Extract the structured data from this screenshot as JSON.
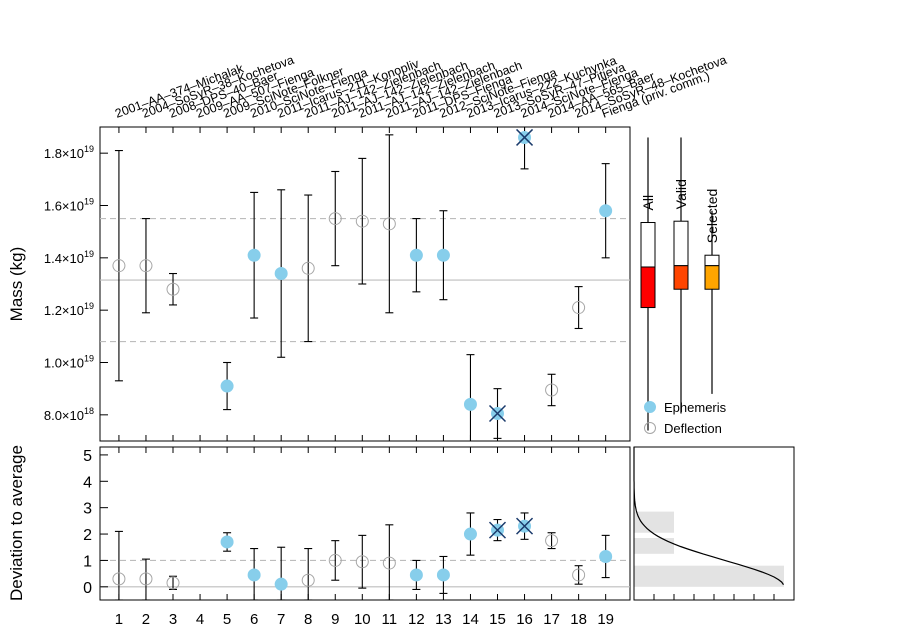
{
  "chart_data": [
    {
      "type": "scatter",
      "ylabel": "Mass (kg)",
      "ylim": [
        7e+18,
        1.9e+19
      ],
      "y_ticks": [
        {
          "v": 8e+18,
          "mant": "8.0",
          "exp": "18"
        },
        {
          "v": 1e+19,
          "mant": "1.0",
          "exp": "19"
        },
        {
          "v": 1.2e+19,
          "mant": "1.2",
          "exp": "19"
        },
        {
          "v": 1.4e+19,
          "mant": "1.4",
          "exp": "19"
        },
        {
          "v": 1.6e+19,
          "mant": "1.6",
          "exp": "19"
        },
        {
          "v": 1.8e+19,
          "mant": "1.8",
          "exp": "19"
        }
      ],
      "times_sign": "×",
      "mean": 1.315e+19,
      "sigma_lines": [
        1.08e+19,
        1.55e+19
      ],
      "top_labels": [
        "2001–AA–374–Michalak",
        "2004–SoSyR–38–Kochetova",
        "2008–DPS–40–Baer",
        "2009–AA–507–Fienga",
        "2009–SciNote–Folkner",
        "2010–SciNote–Fienga",
        "2011–Icarus–211–Konopliv",
        "2011–AJ–142–Zielenbach",
        "2011–AJ–142–Zielenbach",
        "2011–AJ–142–Zielenbach",
        "2011–AJ–142–Zielenbach",
        "2011–DPS–Fienga",
        "2012–SciNote–Fienga",
        "2013–Icarus–222–Kuchynka",
        "2013–SoSyR–47–Pitjeva",
        "2014–SciNote–Fienga",
        "2014–AA–565–Baer",
        "2014–SoSyR–48–Kochetova",
        "Fienga (priv. comm.)"
      ],
      "points": [
        {
          "x": 1,
          "y": 1.37e+19,
          "lo": 9.3e+18,
          "hi": 1.81e+19,
          "method": "deflection",
          "rejected": false
        },
        {
          "x": 2,
          "y": 1.37e+19,
          "lo": 1.19e+19,
          "hi": 1.55e+19,
          "method": "deflection",
          "rejected": false
        },
        {
          "x": 3,
          "y": 1.28e+19,
          "lo": 1.22e+19,
          "hi": 1.34e+19,
          "method": "deflection",
          "rejected": false
        },
        {
          "x": 5,
          "y": 9.1e+18,
          "lo": 8.2e+18,
          "hi": 1e+19,
          "method": "ephemeris",
          "rejected": false
        },
        {
          "x": 6,
          "y": 1.41e+19,
          "lo": 1.17e+19,
          "hi": 1.65e+19,
          "method": "ephemeris",
          "rejected": false
        },
        {
          "x": 7,
          "y": 1.34e+19,
          "lo": 1.02e+19,
          "hi": 1.66e+19,
          "method": "ephemeris",
          "rejected": false
        },
        {
          "x": 8,
          "y": 1.36e+19,
          "lo": 1.08e+19,
          "hi": 1.64e+19,
          "method": "deflection",
          "rejected": false
        },
        {
          "x": 9,
          "y": 1.55e+19,
          "lo": 1.37e+19,
          "hi": 1.73e+19,
          "method": "deflection",
          "rejected": false
        },
        {
          "x": 10,
          "y": 1.54e+19,
          "lo": 1.3e+19,
          "hi": 1.78e+19,
          "method": "deflection",
          "rejected": false
        },
        {
          "x": 11,
          "y": 1.53e+19,
          "lo": 1.19e+19,
          "hi": 1.87e+19,
          "method": "deflection",
          "rejected": false
        },
        {
          "x": 12,
          "y": 1.41e+19,
          "lo": 1.27e+19,
          "hi": 1.55e+19,
          "method": "ephemeris",
          "rejected": false
        },
        {
          "x": 13,
          "y": 1.41e+19,
          "lo": 1.24e+19,
          "hi": 1.58e+19,
          "method": "ephemeris",
          "rejected": false
        },
        {
          "x": 14,
          "y": 8.4e+18,
          "lo": 6.5e+18,
          "hi": 1.03e+19,
          "method": "ephemeris",
          "rejected": false
        },
        {
          "x": 15,
          "y": 8.05e+18,
          "lo": 7.1e+18,
          "hi": 9e+18,
          "method": "ephemeris",
          "rejected": true
        },
        {
          "x": 16,
          "y": 1.86e+19,
          "lo": 1.74e+19,
          "hi": 1.98e+19,
          "method": "ephemeris",
          "rejected": true
        },
        {
          "x": 17,
          "y": 8.95e+18,
          "lo": 8.35e+18,
          "hi": 9.55e+18,
          "method": "deflection",
          "rejected": false
        },
        {
          "x": 18,
          "y": 1.21e+19,
          "lo": 1.13e+19,
          "hi": 1.29e+19,
          "method": "deflection",
          "rejected": false
        },
        {
          "x": 19,
          "y": 1.58e+19,
          "lo": 1.4e+19,
          "hi": 1.76e+19,
          "method": "ephemeris",
          "rejected": false
        }
      ],
      "legend": [
        {
          "label": "Ephemeris",
          "marker": "filled-circle"
        },
        {
          "label": "Deflection",
          "marker": "open-circle"
        }
      ],
      "colors": {
        "ephemeris": "#87ceeb",
        "cross": "#1a3a6b",
        "deflection_edge": "#a6a6a6",
        "grid_line": "#bdbdbd"
      }
    },
    {
      "type": "box",
      "boxes": [
        {
          "label": "All",
          "whisker_lo": 7.4e+18,
          "q1": 1.21e+19,
          "median": 1.365e+19,
          "q3": 1.535e+19,
          "whisker_hi": 1.86e+19,
          "color": "#ff0000"
        },
        {
          "label": "Valid",
          "whisker_lo": 8.05e+18,
          "q1": 1.28e+19,
          "median": 1.37e+19,
          "q3": 1.54e+19,
          "whisker_hi": 1.86e+19,
          "color": "#ff4500"
        },
        {
          "label": "Selected",
          "whisker_lo": 8.8e+18,
          "q1": 1.28e+19,
          "median": 1.37e+19,
          "q3": 1.41e+19,
          "whisker_hi": 1.58e+19,
          "color": "#ffa500"
        }
      ]
    },
    {
      "type": "scatter",
      "ylabel": "Deviation to average",
      "ylim": [
        -0.5,
        5.3
      ],
      "y_ticks": [
        0,
        1,
        2,
        3,
        4,
        5
      ],
      "x_ticks": [
        1,
        2,
        3,
        4,
        5,
        6,
        7,
        8,
        9,
        10,
        11,
        12,
        13,
        14,
        15,
        16,
        17,
        18,
        19
      ],
      "reference_lines": {
        "solid": 0,
        "dashed": 1
      },
      "points": [
        {
          "x": 1,
          "y": 0.3,
          "lo": -0.5,
          "hi": 2.1,
          "method": "deflection",
          "rejected": false
        },
        {
          "x": 2,
          "y": 0.3,
          "lo": -0.5,
          "hi": 1.05,
          "method": "deflection",
          "rejected": false
        },
        {
          "x": 3,
          "y": 0.15,
          "lo": -0.1,
          "hi": 0.4,
          "method": "deflection",
          "rejected": false
        },
        {
          "x": 5,
          "y": 1.7,
          "lo": 1.35,
          "hi": 2.05,
          "method": "ephemeris",
          "rejected": false
        },
        {
          "x": 6,
          "y": 0.45,
          "lo": -0.5,
          "hi": 1.45,
          "method": "ephemeris",
          "rejected": false
        },
        {
          "x": 7,
          "y": 0.1,
          "lo": -0.5,
          "hi": 1.5,
          "method": "ephemeris",
          "rejected": false
        },
        {
          "x": 8,
          "y": 0.25,
          "lo": -0.5,
          "hi": 1.45,
          "method": "deflection",
          "rejected": false
        },
        {
          "x": 9,
          "y": 1.0,
          "lo": 0.25,
          "hi": 1.75,
          "method": "deflection",
          "rejected": false
        },
        {
          "x": 10,
          "y": 0.95,
          "lo": -0.05,
          "hi": 1.95,
          "method": "deflection",
          "rejected": false
        },
        {
          "x": 11,
          "y": 0.9,
          "lo": -0.5,
          "hi": 2.35,
          "method": "deflection",
          "rejected": false
        },
        {
          "x": 12,
          "y": 0.45,
          "lo": -0.1,
          "hi": 1.0,
          "method": "ephemeris",
          "rejected": false
        },
        {
          "x": 13,
          "y": 0.45,
          "lo": -0.25,
          "hi": 1.15,
          "method": "ephemeris",
          "rejected": false
        },
        {
          "x": 14,
          "y": 2.0,
          "lo": 1.2,
          "hi": 2.8,
          "method": "ephemeris",
          "rejected": false
        },
        {
          "x": 15,
          "y": 2.15,
          "lo": 1.75,
          "hi": 2.55,
          "method": "ephemeris",
          "rejected": true
        },
        {
          "x": 16,
          "y": 2.3,
          "lo": 1.8,
          "hi": 2.8,
          "method": "ephemeris",
          "rejected": true
        },
        {
          "x": 17,
          "y": 1.75,
          "lo": 1.45,
          "hi": 2.05,
          "method": "deflection",
          "rejected": false
        },
        {
          "x": 18,
          "y": 0.45,
          "lo": 0.1,
          "hi": 0.8,
          "method": "deflection",
          "rejected": false
        },
        {
          "x": 19,
          "y": 1.15,
          "lo": 0.35,
          "hi": 1.95,
          "method": "ephemeris",
          "rejected": false
        }
      ]
    },
    {
      "type": "bar",
      "orientation": "horizontal",
      "bins": [
        {
          "lo": 0,
          "hi": 0.8,
          "count": 15
        },
        {
          "lo": 1.25,
          "hi": 1.85,
          "count": 4
        },
        {
          "lo": 2.05,
          "hi": 2.85,
          "count": 4
        }
      ],
      "count_max": 16,
      "curve": {
        "kind": "gaussian-tail",
        "peak": 15,
        "sigma": 1.0
      }
    }
  ]
}
